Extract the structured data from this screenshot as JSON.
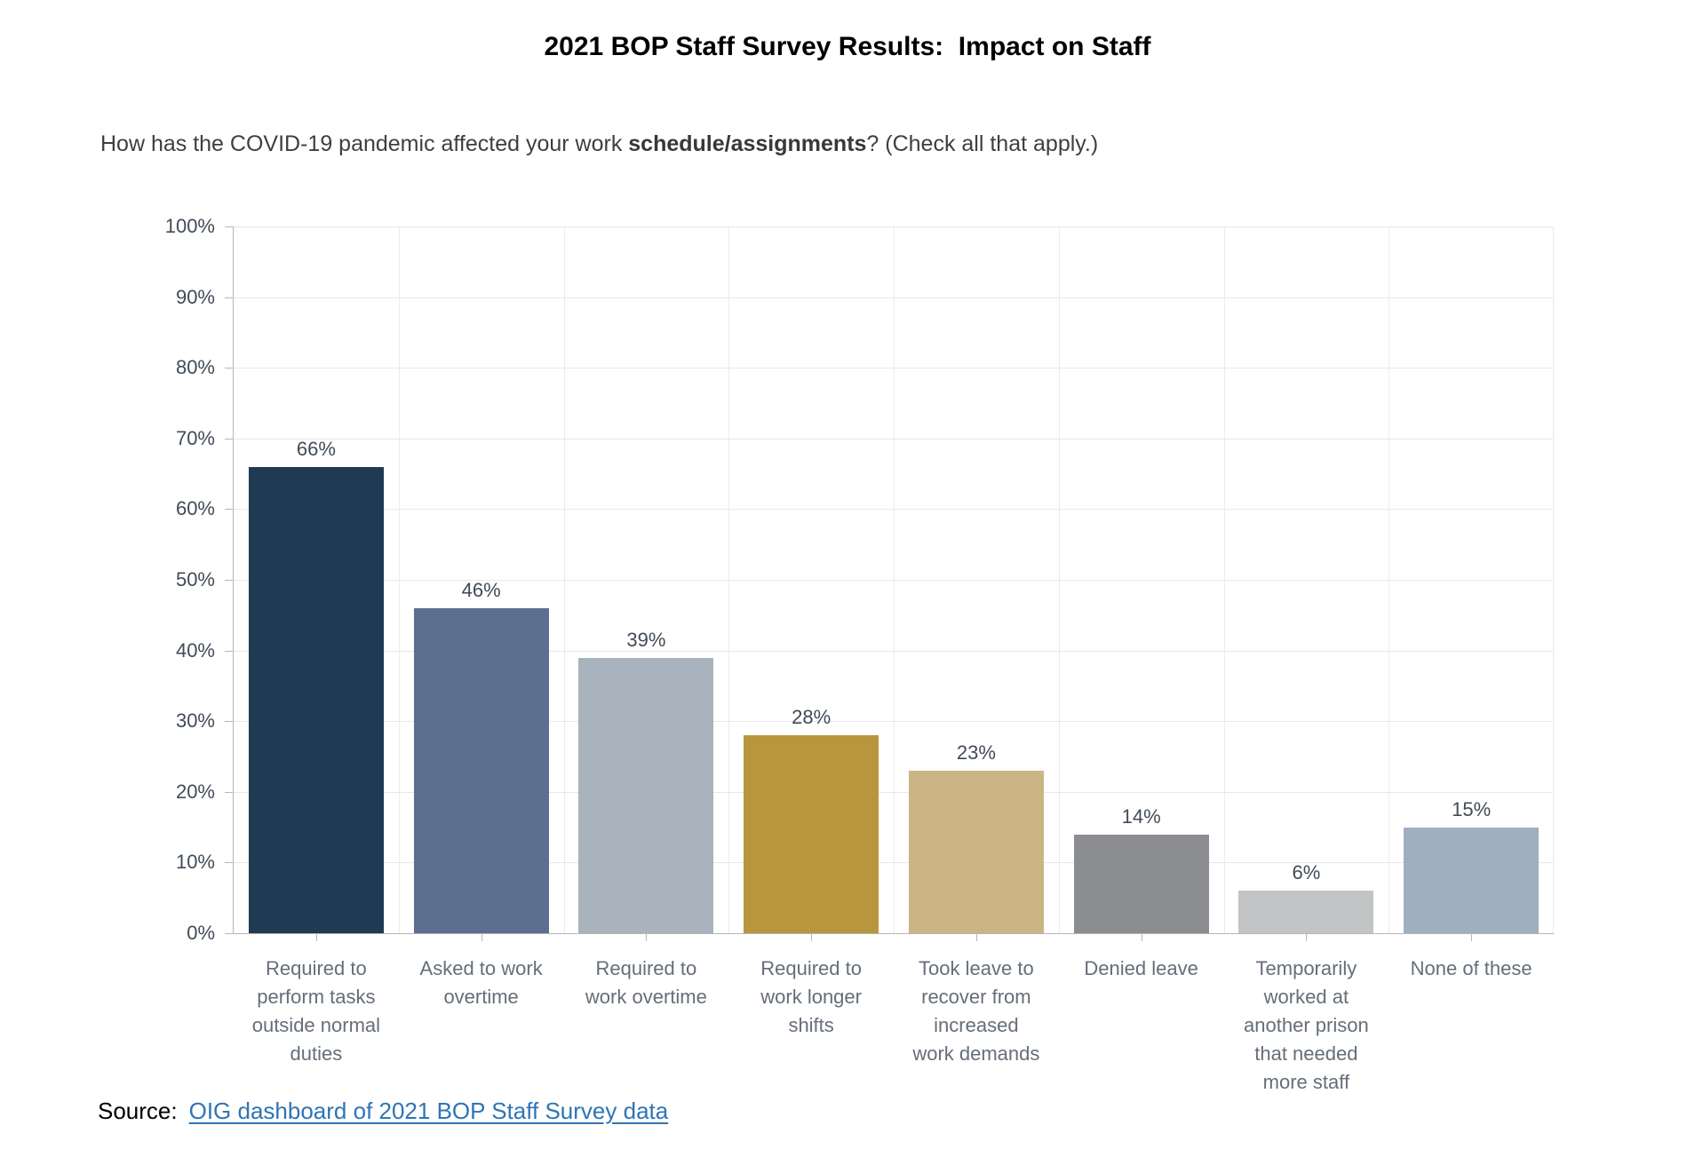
{
  "title": "2021 BOP Staff Survey Results:  Impact on Staff",
  "question": {
    "prefix": "How has the COVID-19 pandemic affected your work ",
    "bold": "schedule/assignments",
    "suffix": "? (Check all that apply.)"
  },
  "source": {
    "label": "Source:",
    "link_text": "OIG dashboard of 2021 BOP Staff Survey data",
    "link_color": "#2e74b5"
  },
  "chart_data": {
    "type": "bar",
    "title": "2021 BOP Staff Survey Results: Impact on Staff",
    "subtitle": "How has the COVID-19 pandemic affected your work schedule/assignments? (Check all that apply.)",
    "categories": [
      "Required to perform tasks outside normal duties",
      "Asked to work overtime",
      "Required to work overtime",
      "Required to work longer shifts",
      "Took leave to recover from increased work demands",
      "Denied leave",
      "Temporarily worked at another prison that needed more staff",
      "None of these"
    ],
    "category_lines": [
      [
        "Required to",
        "perform tasks",
        "outside normal",
        "duties"
      ],
      [
        "Asked to work",
        "overtime"
      ],
      [
        "Required to",
        "work overtime"
      ],
      [
        "Required to",
        "work longer",
        "shifts"
      ],
      [
        "Took leave to",
        "recover from",
        "increased",
        "work demands"
      ],
      [
        "Denied leave"
      ],
      [
        "Temporarily",
        "worked at",
        "another prison",
        "that needed",
        "more staff"
      ],
      [
        "None of these"
      ]
    ],
    "values": [
      66,
      46,
      39,
      28,
      23,
      14,
      6,
      15
    ],
    "value_labels": [
      "66%",
      "46%",
      "39%",
      "28%",
      "23%",
      "14%",
      "6%",
      "15%"
    ],
    "bar_colors": [
      "#1f3a53",
      "#5d6f91",
      "#a9b3be",
      "#b8963e",
      "#cbb584",
      "#8b8d90",
      "#c3c4c6",
      "#9fafbe"
    ],
    "xlabel": "",
    "ylabel": "",
    "ylim": [
      0,
      100
    ],
    "ytick_step": 10,
    "ytick_labels": [
      "0%",
      "10%",
      "20%",
      "30%",
      "40%",
      "50%",
      "60%",
      "70%",
      "80%",
      "90%",
      "100%"
    ],
    "grid": true,
    "legend": false
  }
}
